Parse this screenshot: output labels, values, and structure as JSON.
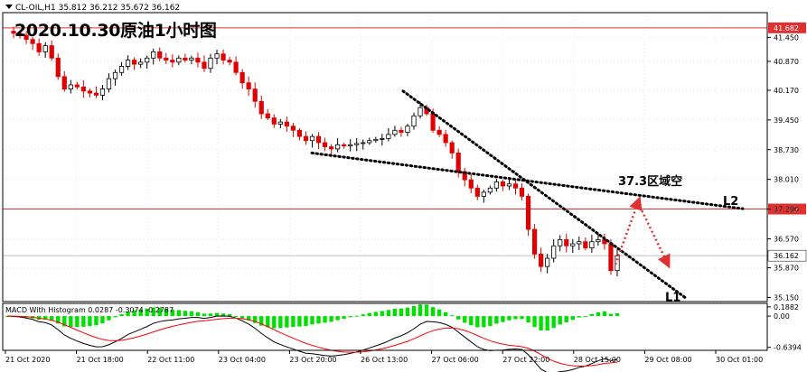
{
  "header": {
    "symbol_info": "CL-OIL,H1  35.812 36.212 35.672 36.162",
    "title": "2020.10.30原油1小时图"
  },
  "chart_data": {
    "type": "candlestick",
    "symbol": "CL-OIL",
    "timeframe": "H1",
    "ohlc_readout": {
      "open": 35.812,
      "high": 36.212,
      "low": 35.672,
      "close": 36.162
    },
    "y_ticks": [
      "41.450",
      "40.870",
      "40.170",
      "39.450",
      "38.730",
      "38.010",
      "37.290",
      "36.570",
      "35.870",
      "35.150"
    ],
    "y_ticks_values": [
      41.45,
      40.87,
      40.17,
      39.45,
      38.73,
      38.01,
      37.29,
      36.57,
      35.87,
      35.15
    ],
    "x_ticks": [
      "21 Oct 2020",
      "21 Oct 18:00",
      "22 Oct 11:00",
      "23 Oct 04:00",
      "23 Oct 20:00",
      "26 Oct 13:00",
      "27 Oct 06:00",
      "27 Oct 22:00",
      "28 Oct 15:00",
      "29 Oct 08:00",
      "30 Oct 01:00"
    ],
    "ylim": [
      35.05,
      42.05
    ],
    "close_path": [
      41.6,
      41.55,
      41.5,
      41.4,
      41.3,
      41.1,
      41.25,
      40.95,
      40.5,
      40.2,
      40.3,
      40.25,
      40.15,
      40.1,
      40.05,
      40.2,
      40.45,
      40.6,
      40.75,
      40.9,
      40.8,
      40.85,
      40.95,
      41.1,
      40.95,
      40.9,
      40.85,
      40.95,
      40.9,
      40.95,
      40.85,
      40.7,
      40.95,
      41.05,
      40.9,
      40.85,
      40.6,
      40.35,
      40.2,
      39.9,
      39.6,
      39.5,
      39.35,
      39.4,
      39.3,
      39.2,
      39.05,
      38.95,
      39.05,
      38.9,
      38.8,
      38.75,
      38.85,
      38.82,
      38.85,
      38.88,
      38.9,
      38.95,
      38.98,
      39.0,
      39.1,
      39.2,
      39.15,
      39.3,
      39.55,
      39.75,
      39.6,
      39.2,
      39.1,
      38.9,
      38.65,
      38.2,
      38.0,
      37.8,
      37.6,
      37.7,
      37.8,
      37.95,
      37.85,
      37.9,
      37.8,
      37.6,
      36.8,
      36.2,
      35.9,
      36.1,
      36.4,
      36.55,
      36.4,
      36.45,
      36.5,
      36.35,
      36.5,
      36.55,
      36.45,
      35.8,
      36.16
    ],
    "current_price": 36.162,
    "horizontal_lines": [
      {
        "price": 41.682,
        "label": "41.682",
        "color": "#e03030"
      },
      {
        "price": 37.292,
        "label": "37.292",
        "color": "#e03030"
      },
      {
        "price": 36.162,
        "label": "36.162",
        "color": "#c0c0c0"
      }
    ],
    "trendlines": [
      {
        "name": "L1",
        "from": [
          0.0,
          40.15
        ],
        "to": [
          1.0,
          35.15
        ],
        "style": "dotted"
      },
      {
        "name": "L2",
        "from": [
          0.0,
          38.65
        ],
        "to": [
          1.0,
          37.3
        ],
        "style": "dotted"
      }
    ],
    "annotation": "37.3区域空",
    "forecast_arrows": {
      "color": "#e03030",
      "points": [
        35.95,
        37.45,
        36.0
      ]
    },
    "macd": {
      "label": "MACD With Histogram 0.0287 -0.3074 -0.2787",
      "y_ticks": [
        "0.1882",
        "0.00",
        "-0.6394"
      ],
      "ylim": [
        -0.7,
        0.26
      ]
    }
  },
  "colors": {
    "up_candle": "#000000",
    "down_candle": "#e00000",
    "grid": "#d0d0d0",
    "macd_hist": "#00e000",
    "macd_line": "#000000",
    "signal_line": "#ff0000",
    "price_label_bg": "#e03030"
  }
}
